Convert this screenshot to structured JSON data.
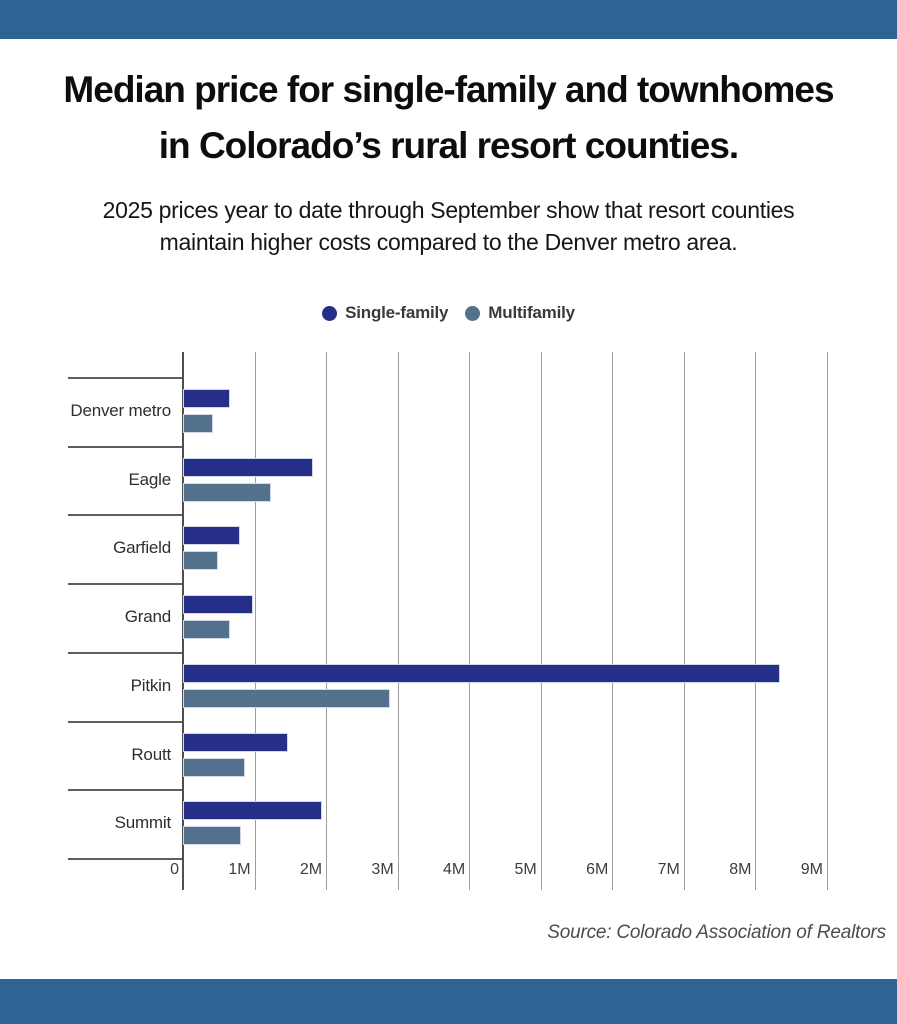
{
  "colors": {
    "banner": "#2e6493",
    "single_family": "#252f8a",
    "multifamily": "#53708d",
    "gridline": "#9e9e9e"
  },
  "title": {
    "line1": "Median price for single-family and townhomes",
    "line2": "in Colorado’s rural resort counties."
  },
  "subtitle": {
    "line1": "2025 prices year to date through September show that resort counties",
    "line2": "maintain higher costs compared to the Denver metro area."
  },
  "legend": {
    "items": [
      {
        "label": "Single-family",
        "color": "#252f8a"
      },
      {
        "label": "Multifamily",
        "color": "#53708d"
      }
    ]
  },
  "chart_data": {
    "type": "bar",
    "orientation": "horizontal",
    "title": "Median price for single-family and townhomes in Colorado’s rural resort counties.",
    "categories": [
      "Denver metro",
      "Eagle",
      "Garfield",
      "Grand",
      "Pitkin",
      "Routt",
      "Summit"
    ],
    "series": [
      {
        "name": "Single-family",
        "color": "#252f8a",
        "values": [
          650000,
          1820000,
          795000,
          975000,
          8350000,
          1465000,
          1940000
        ]
      },
      {
        "name": "Multifamily",
        "color": "#53708d",
        "values": [
          420000,
          1230000,
          485000,
          650000,
          2890000,
          865000,
          810000
        ]
      }
    ],
    "value_unit": "USD",
    "xlim": [
      0,
      9000000
    ],
    "x_tick_labels": [
      "0",
      "1M",
      "2M",
      "3M",
      "4M",
      "5M",
      "6M",
      "7M",
      "8M",
      "9M"
    ],
    "grid": "vertical",
    "legend_position": "top-center"
  },
  "source": "Source: Colorado Association of Realtors"
}
